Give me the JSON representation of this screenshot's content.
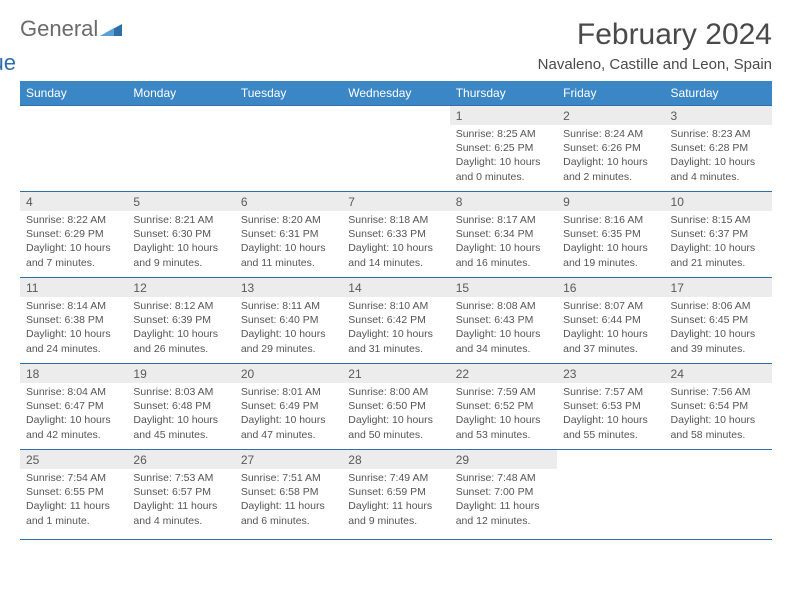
{
  "logo": {
    "word1": "General",
    "word2": "Blue"
  },
  "title": "February 2024",
  "location": "Navaleno, Castille and Leon, Spain",
  "colors": {
    "header_bg": "#3b86c4",
    "header_text": "#ffffff",
    "rule": "#2f6fa8",
    "daynum_bg": "#ececec",
    "body_text": "#555555",
    "title_text": "#4a4a4a",
    "logo_gray": "#6b6b6b",
    "logo_blue": "#2f6fa8"
  },
  "weekdays": [
    "Sunday",
    "Monday",
    "Tuesday",
    "Wednesday",
    "Thursday",
    "Friday",
    "Saturday"
  ],
  "weeks": [
    [
      null,
      null,
      null,
      null,
      {
        "n": "1",
        "sunrise": "Sunrise: 8:25 AM",
        "sunset": "Sunset: 6:25 PM",
        "daylight": "Daylight: 10 hours and 0 minutes."
      },
      {
        "n": "2",
        "sunrise": "Sunrise: 8:24 AM",
        "sunset": "Sunset: 6:26 PM",
        "daylight": "Daylight: 10 hours and 2 minutes."
      },
      {
        "n": "3",
        "sunrise": "Sunrise: 8:23 AM",
        "sunset": "Sunset: 6:28 PM",
        "daylight": "Daylight: 10 hours and 4 minutes."
      }
    ],
    [
      {
        "n": "4",
        "sunrise": "Sunrise: 8:22 AM",
        "sunset": "Sunset: 6:29 PM",
        "daylight": "Daylight: 10 hours and 7 minutes."
      },
      {
        "n": "5",
        "sunrise": "Sunrise: 8:21 AM",
        "sunset": "Sunset: 6:30 PM",
        "daylight": "Daylight: 10 hours and 9 minutes."
      },
      {
        "n": "6",
        "sunrise": "Sunrise: 8:20 AM",
        "sunset": "Sunset: 6:31 PM",
        "daylight": "Daylight: 10 hours and 11 minutes."
      },
      {
        "n": "7",
        "sunrise": "Sunrise: 8:18 AM",
        "sunset": "Sunset: 6:33 PM",
        "daylight": "Daylight: 10 hours and 14 minutes."
      },
      {
        "n": "8",
        "sunrise": "Sunrise: 8:17 AM",
        "sunset": "Sunset: 6:34 PM",
        "daylight": "Daylight: 10 hours and 16 minutes."
      },
      {
        "n": "9",
        "sunrise": "Sunrise: 8:16 AM",
        "sunset": "Sunset: 6:35 PM",
        "daylight": "Daylight: 10 hours and 19 minutes."
      },
      {
        "n": "10",
        "sunrise": "Sunrise: 8:15 AM",
        "sunset": "Sunset: 6:37 PM",
        "daylight": "Daylight: 10 hours and 21 minutes."
      }
    ],
    [
      {
        "n": "11",
        "sunrise": "Sunrise: 8:14 AM",
        "sunset": "Sunset: 6:38 PM",
        "daylight": "Daylight: 10 hours and 24 minutes."
      },
      {
        "n": "12",
        "sunrise": "Sunrise: 8:12 AM",
        "sunset": "Sunset: 6:39 PM",
        "daylight": "Daylight: 10 hours and 26 minutes."
      },
      {
        "n": "13",
        "sunrise": "Sunrise: 8:11 AM",
        "sunset": "Sunset: 6:40 PM",
        "daylight": "Daylight: 10 hours and 29 minutes."
      },
      {
        "n": "14",
        "sunrise": "Sunrise: 8:10 AM",
        "sunset": "Sunset: 6:42 PM",
        "daylight": "Daylight: 10 hours and 31 minutes."
      },
      {
        "n": "15",
        "sunrise": "Sunrise: 8:08 AM",
        "sunset": "Sunset: 6:43 PM",
        "daylight": "Daylight: 10 hours and 34 minutes."
      },
      {
        "n": "16",
        "sunrise": "Sunrise: 8:07 AM",
        "sunset": "Sunset: 6:44 PM",
        "daylight": "Daylight: 10 hours and 37 minutes."
      },
      {
        "n": "17",
        "sunrise": "Sunrise: 8:06 AM",
        "sunset": "Sunset: 6:45 PM",
        "daylight": "Daylight: 10 hours and 39 minutes."
      }
    ],
    [
      {
        "n": "18",
        "sunrise": "Sunrise: 8:04 AM",
        "sunset": "Sunset: 6:47 PM",
        "daylight": "Daylight: 10 hours and 42 minutes."
      },
      {
        "n": "19",
        "sunrise": "Sunrise: 8:03 AM",
        "sunset": "Sunset: 6:48 PM",
        "daylight": "Daylight: 10 hours and 45 minutes."
      },
      {
        "n": "20",
        "sunrise": "Sunrise: 8:01 AM",
        "sunset": "Sunset: 6:49 PM",
        "daylight": "Daylight: 10 hours and 47 minutes."
      },
      {
        "n": "21",
        "sunrise": "Sunrise: 8:00 AM",
        "sunset": "Sunset: 6:50 PM",
        "daylight": "Daylight: 10 hours and 50 minutes."
      },
      {
        "n": "22",
        "sunrise": "Sunrise: 7:59 AM",
        "sunset": "Sunset: 6:52 PM",
        "daylight": "Daylight: 10 hours and 53 minutes."
      },
      {
        "n": "23",
        "sunrise": "Sunrise: 7:57 AM",
        "sunset": "Sunset: 6:53 PM",
        "daylight": "Daylight: 10 hours and 55 minutes."
      },
      {
        "n": "24",
        "sunrise": "Sunrise: 7:56 AM",
        "sunset": "Sunset: 6:54 PM",
        "daylight": "Daylight: 10 hours and 58 minutes."
      }
    ],
    [
      {
        "n": "25",
        "sunrise": "Sunrise: 7:54 AM",
        "sunset": "Sunset: 6:55 PM",
        "daylight": "Daylight: 11 hours and 1 minute."
      },
      {
        "n": "26",
        "sunrise": "Sunrise: 7:53 AM",
        "sunset": "Sunset: 6:57 PM",
        "daylight": "Daylight: 11 hours and 4 minutes."
      },
      {
        "n": "27",
        "sunrise": "Sunrise: 7:51 AM",
        "sunset": "Sunset: 6:58 PM",
        "daylight": "Daylight: 11 hours and 6 minutes."
      },
      {
        "n": "28",
        "sunrise": "Sunrise: 7:49 AM",
        "sunset": "Sunset: 6:59 PM",
        "daylight": "Daylight: 11 hours and 9 minutes."
      },
      {
        "n": "29",
        "sunrise": "Sunrise: 7:48 AM",
        "sunset": "Sunset: 7:00 PM",
        "daylight": "Daylight: 11 hours and 12 minutes."
      },
      null,
      null
    ]
  ]
}
